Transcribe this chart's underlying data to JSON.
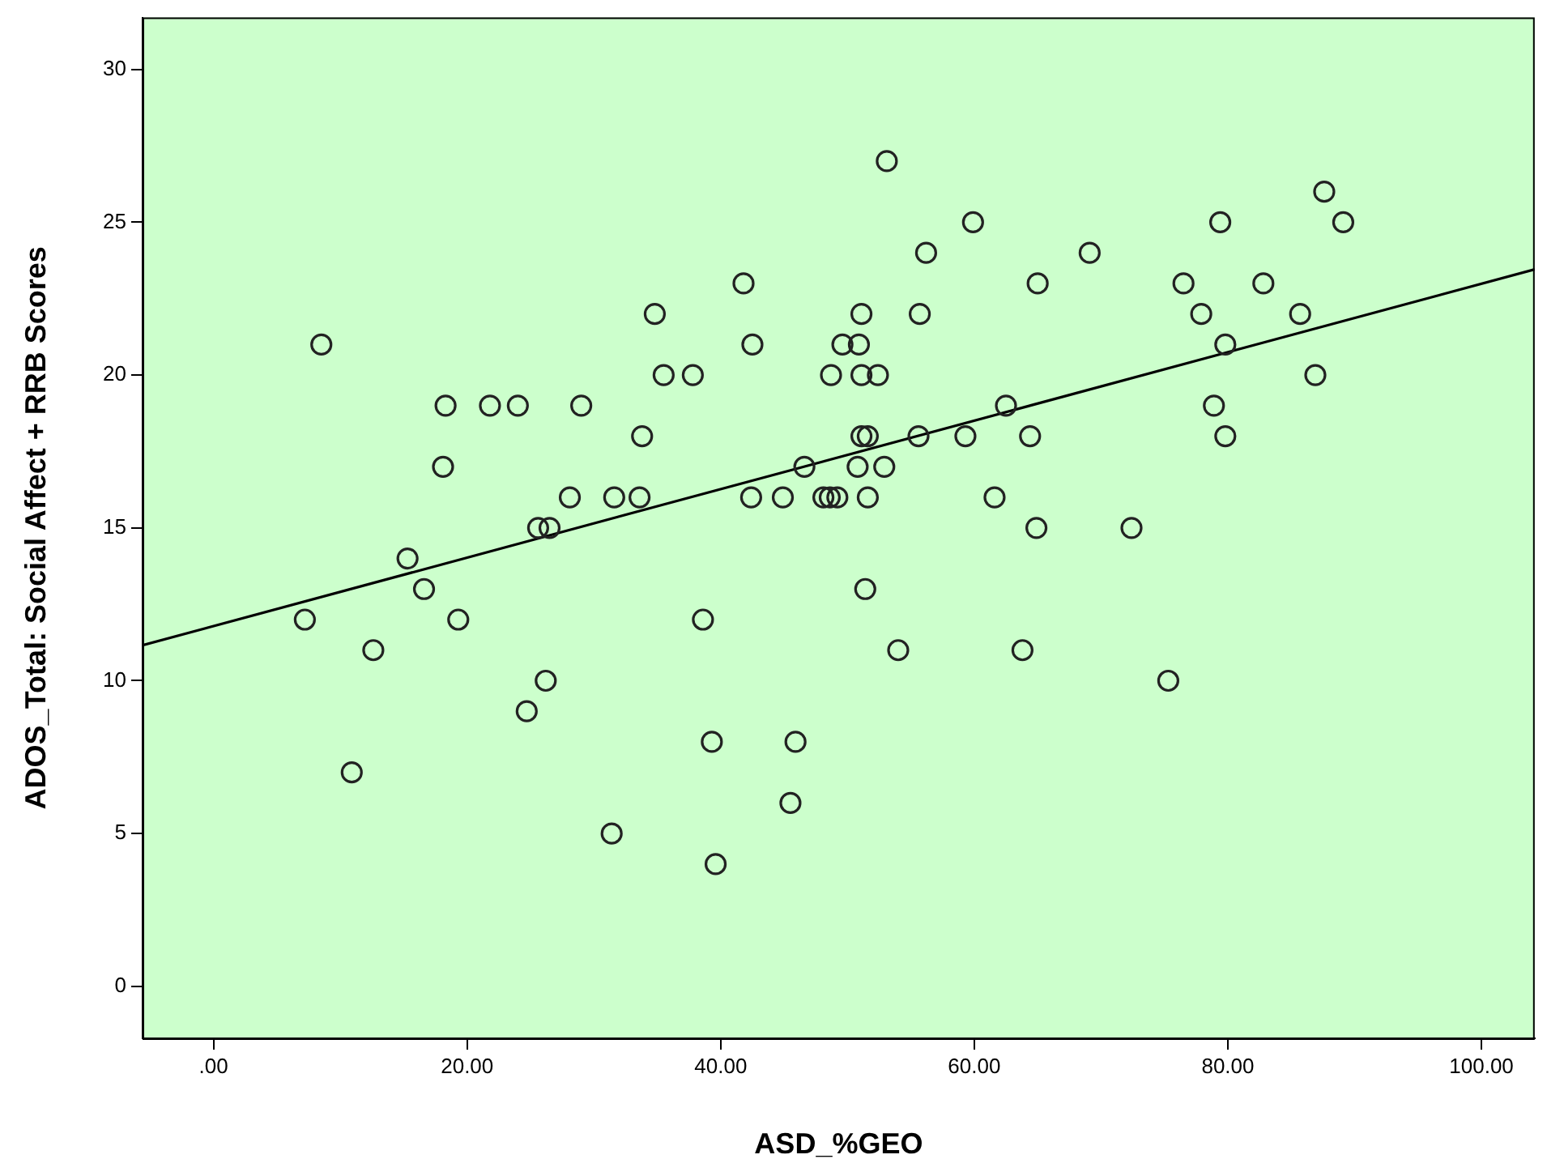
{
  "chart_data": {
    "type": "scatter",
    "xlabel": "ASD_%GEO",
    "ylabel": "ADOS_Total: Social Affect + RRB Scores",
    "xlim": [
      -5.6,
      104.2
    ],
    "ylim": [
      -1.7,
      31.7
    ],
    "xticks": [
      {
        "value": 0,
        "label": ".00"
      },
      {
        "value": 20,
        "label": "20.00"
      },
      {
        "value": 40,
        "label": "40.00"
      },
      {
        "value": 60,
        "label": "60.00"
      },
      {
        "value": 80,
        "label": "80.00"
      },
      {
        "value": 100,
        "label": "100.00"
      }
    ],
    "yticks": [
      0,
      5,
      10,
      15,
      20,
      25,
      30
    ],
    "grid": false,
    "legend": false,
    "marker": "circle",
    "series": [
      {
        "color": "#222222",
        "x": [
          8.5,
          18.3,
          21.8,
          24.0,
          29.0,
          18.1,
          28.1,
          31.6,
          25.6,
          26.5,
          53.1,
          59.9,
          56.2,
          69.1,
          41.8,
          65.0,
          34.8,
          51.1,
          55.7,
          42.5,
          49.6,
          50.9,
          35.5,
          37.8,
          48.7,
          51.1,
          52.4,
          62.5,
          33.8,
          51.1,
          51.6,
          55.6,
          59.3,
          64.4,
          46.6,
          50.8,
          52.9,
          33.6,
          42.4,
          44.9,
          48.1,
          48.6,
          49.2,
          51.6,
          61.6,
          64.9,
          87.6,
          79.4,
          89.1,
          76.5,
          82.8,
          77.9,
          85.7,
          79.8,
          86.9,
          78.9,
          79.8,
          72.4,
          15.3,
          16.6,
          7.2,
          19.3,
          38.6,
          12.6,
          26.2,
          24.7,
          39.3,
          45.9,
          10.9,
          45.5,
          31.4,
          39.6,
          51.4,
          54.0,
          63.8,
          75.3
        ],
        "values": [
          21,
          19,
          19,
          19,
          19,
          17,
          16,
          16,
          15,
          15,
          27,
          25,
          24,
          24,
          23,
          23,
          22,
          22,
          22,
          21,
          21,
          21,
          20,
          20,
          20,
          20,
          20,
          19,
          18,
          18,
          18,
          18,
          18,
          18,
          17,
          17,
          17,
          16,
          16,
          16,
          16,
          16,
          16,
          16,
          16,
          15,
          26,
          25,
          25,
          23,
          23,
          22,
          22,
          21,
          20,
          19,
          18,
          15,
          14,
          13,
          12,
          12,
          12,
          11,
          10,
          9,
          8,
          8,
          7,
          6,
          5,
          4,
          13,
          11,
          11,
          10
        ]
      },
      {
        "type": "line",
        "marker": "none",
        "color": "#000000",
        "x": [
          -5.6,
          104.2
        ],
        "values": [
          11.16,
          23.46
        ]
      }
    ]
  }
}
